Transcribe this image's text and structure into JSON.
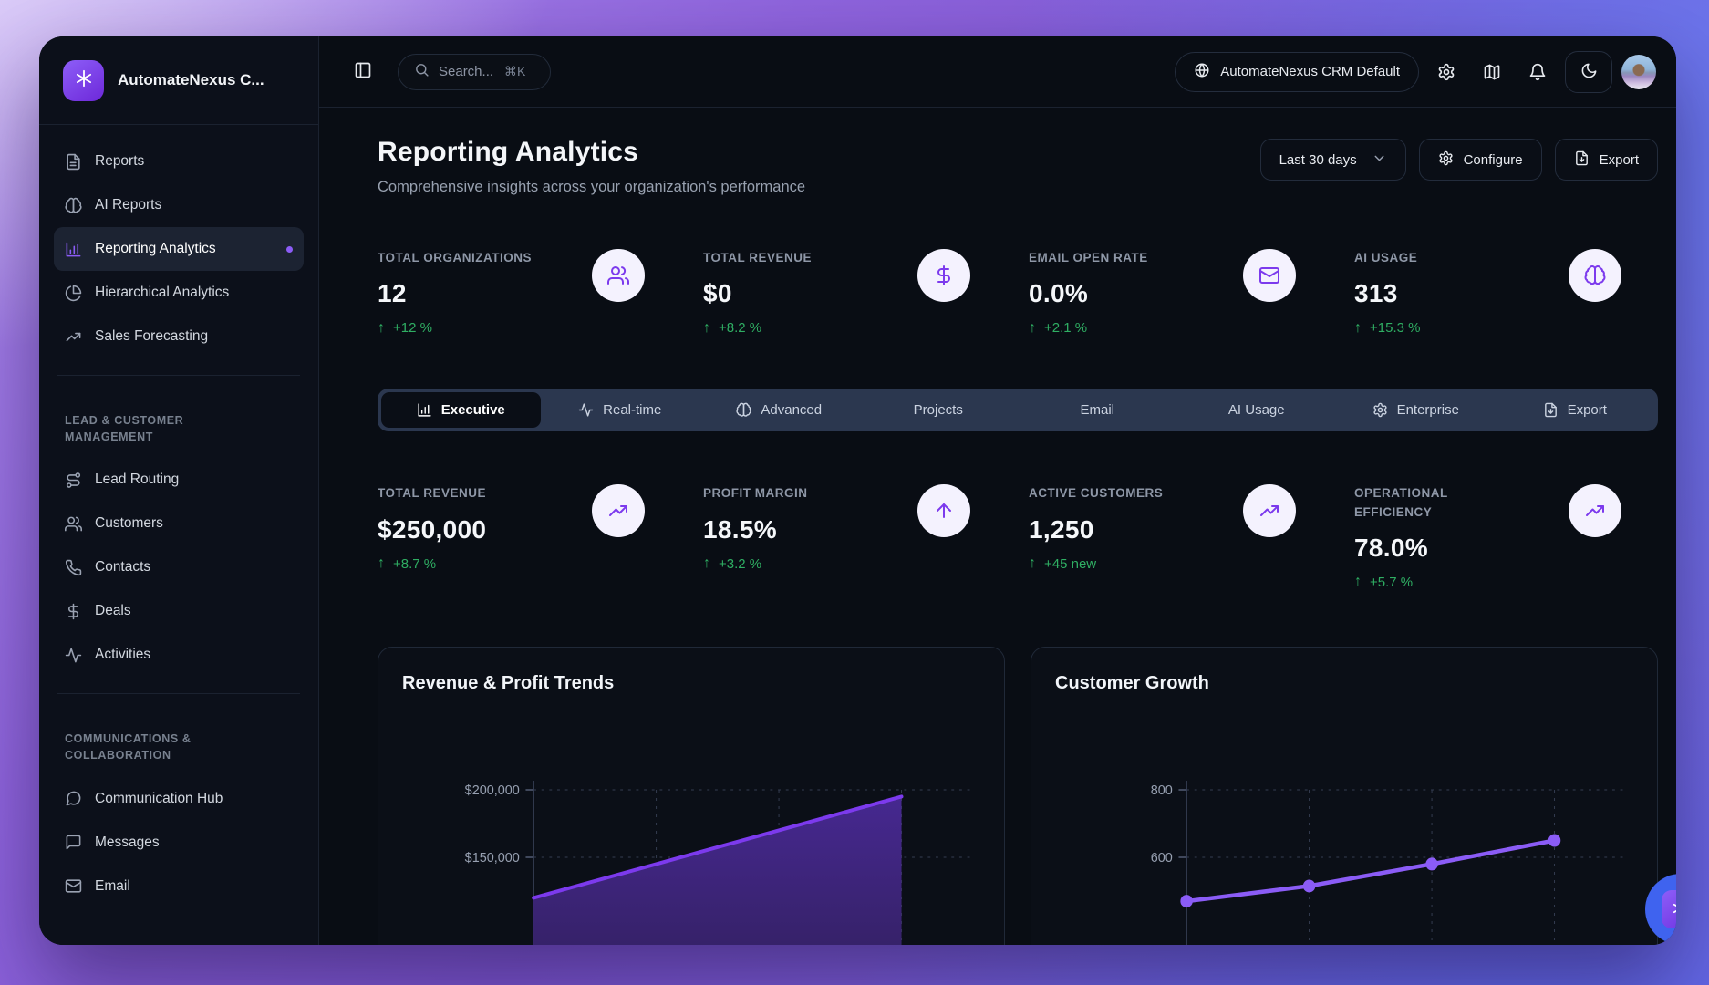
{
  "app": {
    "brand": "AutomateNexus C...",
    "logo_icon": "sparkle"
  },
  "header": {
    "sidebar_toggle_icon": "panel-left",
    "search": {
      "icon": "search",
      "placeholder": "Search...",
      "shortcut": "⌘K"
    },
    "workspace": {
      "icon": "globe",
      "label": "AutomateNexus CRM Default"
    },
    "actions": [
      {
        "name": "settings",
        "icon": "gear"
      },
      {
        "name": "map",
        "icon": "map"
      },
      {
        "name": "notifications",
        "icon": "bell"
      }
    ],
    "theme_toggle_icon": "moon"
  },
  "sidebar": {
    "sections": [
      {
        "items": [
          {
            "label": "Reports",
            "icon": "file-text"
          },
          {
            "label": "AI Reports",
            "icon": "brain"
          },
          {
            "label": "Reporting Analytics",
            "icon": "bar-chart",
            "active": true,
            "dot": true
          },
          {
            "label": "Hierarchical Analytics",
            "icon": "pie-chart"
          },
          {
            "label": "Sales Forecasting",
            "icon": "trending-up"
          }
        ]
      },
      {
        "label": "LEAD & CUSTOMER MANAGEMENT",
        "items": [
          {
            "label": "Lead Routing",
            "icon": "route"
          },
          {
            "label": "Customers",
            "icon": "users"
          },
          {
            "label": "Contacts",
            "icon": "phone"
          },
          {
            "label": "Deals",
            "icon": "dollar"
          },
          {
            "label": "Activities",
            "icon": "activity"
          }
        ]
      },
      {
        "label": "COMMUNICATIONS & COLLABORATION",
        "items": [
          {
            "label": "Communication Hub",
            "icon": "message-circle"
          },
          {
            "label": "Messages",
            "icon": "message-square"
          },
          {
            "label": "Email",
            "icon": "mail"
          }
        ]
      }
    ]
  },
  "page": {
    "title": "Reporting Analytics",
    "subtitle": "Comprehensive insights across your organization's performance",
    "controls": {
      "range": {
        "label": "Last 30 days",
        "icon": "chevron-down"
      },
      "configure": {
        "label": "Configure",
        "icon": "gear"
      },
      "export": {
        "label": "Export",
        "icon": "file-down"
      }
    }
  },
  "kpis_row1": [
    {
      "label": "TOTAL ORGANIZATIONS",
      "value": "12",
      "change": "+12 %",
      "icon": "users"
    },
    {
      "label": "TOTAL REVENUE",
      "value": "$0",
      "change": "+8.2 %",
      "icon": "dollar"
    },
    {
      "label": "EMAIL OPEN RATE",
      "value": "0.0%",
      "change": "+2.1 %",
      "icon": "mail"
    },
    {
      "label": "AI USAGE",
      "value": "313",
      "change": "+15.3 %",
      "icon": "brain"
    }
  ],
  "tabs": [
    {
      "label": "Executive",
      "icon": "bar-chart",
      "active": true
    },
    {
      "label": "Real-time",
      "icon": "activity"
    },
    {
      "label": "Advanced",
      "icon": "brain"
    },
    {
      "label": "Projects"
    },
    {
      "label": "Email"
    },
    {
      "label": "AI Usage"
    },
    {
      "label": "Enterprise",
      "icon": "gear"
    },
    {
      "label": "Export",
      "icon": "file-down"
    }
  ],
  "kpis_row2": [
    {
      "label": "TOTAL REVENUE",
      "value": "$250,000",
      "change": "+8.7 %",
      "icon": "trending-up"
    },
    {
      "label": "PROFIT MARGIN",
      "value": "18.5%",
      "change": "+3.2 %",
      "icon": "arrow-up"
    },
    {
      "label": "ACTIVE CUSTOMERS",
      "value": "1,250",
      "change": "+45 new",
      "icon": "trending-up"
    },
    {
      "label": "OPERATIONAL EFFICIENCY",
      "value": "78.0%",
      "change": "+5.7 %",
      "icon": "trending-up"
    }
  ],
  "chart_data": [
    {
      "type": "area",
      "title": "Revenue & Profit Trends",
      "ylabel_ticks": [
        {
          "label": "$200,000",
          "value": 200000
        },
        {
          "label": "$150,000",
          "value": 150000
        }
      ],
      "values": [
        120000,
        145000,
        170000,
        195000
      ],
      "x_labels": [],
      "grid": "dashed",
      "legend": "none",
      "line_color": "#7c3aed",
      "fill_color_top": "#462890",
      "fill_color_bottom": "#32205f"
    },
    {
      "type": "line",
      "title": "Customer Growth",
      "ylabel_ticks": [
        {
          "label": "800",
          "value": 800
        },
        {
          "label": "600",
          "value": 600
        }
      ],
      "values": [
        470,
        515,
        580,
        650
      ],
      "x_labels": [],
      "grid": "dashed",
      "legend": "none",
      "marker": true,
      "line_color": "#8b5cf6"
    }
  ],
  "colors": {
    "accent": "#7c3aed",
    "accent_light": "#8b5cf6",
    "positive": "#2fae63",
    "icon_circle_bg": "#f4f2fe",
    "floating_button": "#3f63ef"
  }
}
